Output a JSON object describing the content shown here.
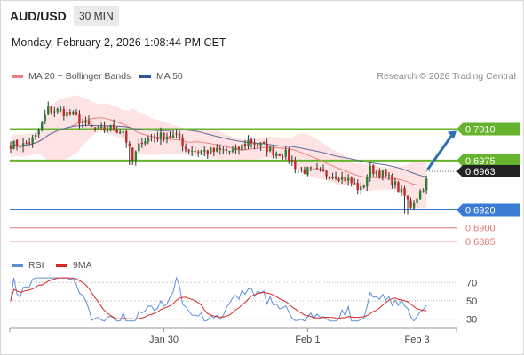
{
  "header": {
    "pair": "AUD/USD",
    "timeframe": "30 MIN",
    "timestamp": "Monday, February 2, 2026 1:08:44 PM CET",
    "credit": "Research © 2026 Trading Central"
  },
  "colors": {
    "up": "#2e7d32",
    "down": "#c62828",
    "wick": "#333333",
    "ma20": "#f08080",
    "bands_fill": "#fde3e3",
    "ma50": "#5b6b9a",
    "resistance_green": "#66b32e",
    "support_blue": "#3a7bd5",
    "support_red": "#e87575",
    "last_price": "#222222",
    "rsi": "#5b8fd9",
    "rsi_ma": "#d62828",
    "arrow": "#2f6fb3"
  },
  "chart_data": [
    {
      "type": "candlestick",
      "legend": [
        {
          "name": "MA 20 + Bollinger Bands",
          "color": "#f08080"
        },
        {
          "name": "MA 50",
          "color": "#5b6b9a"
        }
      ],
      "y_range": [
        0.6875,
        0.7055
      ],
      "x_ticks": [
        {
          "label": "Jan 30",
          "index": 49
        },
        {
          "label": "Feb 1",
          "index": 95
        },
        {
          "label": "Feb 3",
          "index": 130
        }
      ],
      "levels": [
        {
          "value": 0.701,
          "label": "0.7010",
          "kind": "resistance",
          "color": "#66b32e",
          "label_style": "tag"
        },
        {
          "value": 0.6975,
          "label": "0.6975",
          "kind": "resistance",
          "color": "#66b32e",
          "label_style": "tag"
        },
        {
          "value": 0.692,
          "label": "0.6920",
          "kind": "support",
          "color": "#3a7bd5",
          "label_style": "tag"
        },
        {
          "value": 0.69,
          "label": "0.6900",
          "kind": "support",
          "color": "#e87575",
          "label_style": "text"
        },
        {
          "value": 0.6885,
          "label": "0.6885",
          "kind": "support",
          "color": "#e87575",
          "label_style": "text"
        }
      ],
      "last_price": {
        "value": 0.6963,
        "label": "0.6963"
      },
      "arrow": {
        "from_value": 0.6966,
        "to_value": 0.701,
        "direction": "up"
      }
    },
    {
      "type": "line",
      "legend": [
        {
          "name": "RSI",
          "color": "#5b8fd9"
        },
        {
          "name": "9MA",
          "color": "#d62828"
        }
      ],
      "y_ticks": [
        70,
        50,
        30
      ],
      "y_range": [
        22,
        78
      ]
    }
  ]
}
